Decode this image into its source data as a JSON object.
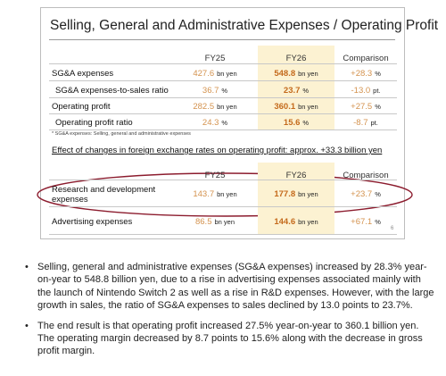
{
  "slide": {
    "title": "Selling, General and Administrative Expenses / Operating Profit",
    "table1": {
      "headers": [
        "FY25",
        "FY26",
        "Comparison"
      ],
      "rows": [
        {
          "label": "SG&A expenses",
          "fy25": {
            "value": "427.6",
            "unit": "bn yen"
          },
          "fy26": {
            "value": "548.8",
            "unit": "bn yen"
          },
          "comparison": {
            "value": "+28.3",
            "unit": "%"
          }
        },
        {
          "label": "SG&A expenses-to-sales ratio",
          "fy25": {
            "value": "36.7",
            "unit": "%"
          },
          "fy26": {
            "value": "23.7",
            "unit": "%"
          },
          "comparison": {
            "value": "-13.0",
            "unit": "pt."
          }
        },
        {
          "label": "Operating profit",
          "fy25": {
            "value": "282.5",
            "unit": "bn yen"
          },
          "fy26": {
            "value": "360.1",
            "unit": "bn yen"
          },
          "comparison": {
            "value": "+27.5",
            "unit": "%"
          }
        },
        {
          "label": "Operating profit ratio",
          "fy25": {
            "value": "24.3",
            "unit": "%"
          },
          "fy26": {
            "value": "15.6",
            "unit": "%"
          },
          "comparison": {
            "value": "-8.7",
            "unit": "pt."
          }
        }
      ]
    },
    "footnote": "* SG&A expenses: Selling, general and administrative expenses",
    "effect": "Effect of changes in foreign exchange rates on operating profit: approx. +33.3 billion yen",
    "table2": {
      "headers": [
        "FY25",
        "FY26",
        "Comparison"
      ],
      "rows": [
        {
          "label": "Research and development expenses",
          "fy25": {
            "value": "143.7",
            "unit": "bn yen"
          },
          "fy26": {
            "value": "177.8",
            "unit": "bn yen"
          },
          "comparison": {
            "value": "+23.7",
            "unit": "%"
          }
        },
        {
          "label": "Advertising expenses",
          "fy25": {
            "value": "86.5",
            "unit": "bn yen"
          },
          "fy26": {
            "value": "144.6",
            "unit": "bn yen"
          },
          "comparison": {
            "value": "+67.1",
            "unit": "%"
          }
        }
      ]
    },
    "page_number": "6"
  },
  "bullets": [
    "Selling, general and administrative expenses (SG&A expenses) increased by 28.3% year-on-year to 548.8 billion yen, due to a rise in advertising expenses associated mainly with the launch of Nintendo Switch 2 as well as a rise in R&D expenses. However, with the large growth in sales, the ratio of SG&A expenses to sales declined by 13.0 points to 23.7%.",
    "The end result is that operating profit increased 27.5% year-on-year to 360.1 billion yen. The operating margin decreased by 8.7 points to 15.6% along with the decrease in gross profit margin."
  ]
}
